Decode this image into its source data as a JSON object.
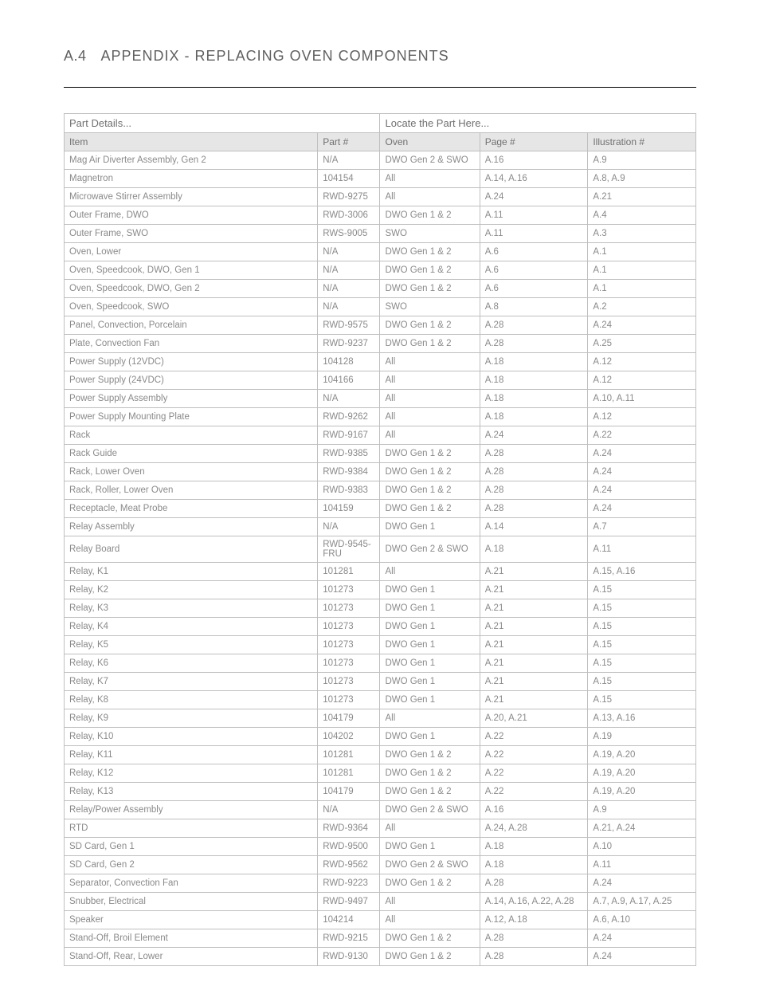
{
  "header": {
    "page_number": "A.4",
    "title": "APPENDIX - REPLACING OVEN COMPONENTS"
  },
  "table": {
    "group_headers": {
      "left": "Part Details...",
      "right": "Locate the Part Here..."
    },
    "columns": [
      "Item",
      "Part #",
      "Oven",
      "Page #",
      "Illustration #"
    ],
    "rows": [
      [
        "Mag Air Diverter Assembly, Gen 2",
        "N/A",
        "DWO Gen 2 & SWO",
        "A.16",
        "A.9"
      ],
      [
        "Magnetron",
        "104154",
        "All",
        "A.14, A.16",
        "A.8, A.9"
      ],
      [
        "Microwave Stirrer Assembly",
        "RWD-9275",
        "All",
        "A.24",
        "A.21"
      ],
      [
        "Outer Frame, DWO",
        "RWD-3006",
        "DWO Gen 1 & 2",
        "A.11",
        "A.4"
      ],
      [
        "Outer Frame, SWO",
        "RWS-9005",
        "SWO",
        "A.11",
        "A.3"
      ],
      [
        "Oven, Lower",
        "N/A",
        "DWO Gen 1 & 2",
        "A.6",
        "A.1"
      ],
      [
        "Oven, Speedcook, DWO, Gen 1",
        "N/A",
        "DWO Gen 1 & 2",
        "A.6",
        "A.1"
      ],
      [
        "Oven, Speedcook, DWO, Gen 2",
        "N/A",
        "DWO Gen 1 & 2",
        "A.6",
        "A.1"
      ],
      [
        "Oven, Speedcook, SWO",
        "N/A",
        "SWO",
        "A.8",
        "A.2"
      ],
      [
        "Panel, Convection, Porcelain",
        "RWD-9575",
        "DWO Gen 1 & 2",
        "A.28",
        "A.24"
      ],
      [
        "Plate, Convection Fan",
        "RWD-9237",
        "DWO Gen 1 & 2",
        "A.28",
        "A.25"
      ],
      [
        "Power Supply (12VDC)",
        "104128",
        "All",
        "A.18",
        "A.12"
      ],
      [
        "Power Supply (24VDC)",
        "104166",
        "All",
        "A.18",
        "A.12"
      ],
      [
        "Power Supply Assembly",
        "N/A",
        "All",
        "A.18",
        "A.10, A.11"
      ],
      [
        "Power Supply Mounting Plate",
        "RWD-9262",
        "All",
        "A.18",
        "A.12"
      ],
      [
        "Rack",
        "RWD-9167",
        "All",
        "A.24",
        "A.22"
      ],
      [
        "Rack Guide",
        "RWD-9385",
        "DWO Gen 1 & 2",
        "A.28",
        "A.24"
      ],
      [
        "Rack, Lower Oven",
        "RWD-9384",
        "DWO Gen 1 & 2",
        "A.28",
        "A.24"
      ],
      [
        "Rack, Roller, Lower Oven",
        "RWD-9383",
        "DWO Gen 1 & 2",
        "A.28",
        "A.24"
      ],
      [
        "Receptacle, Meat Probe",
        "104159",
        "DWO Gen 1 & 2",
        "A.28",
        "A.24"
      ],
      [
        "Relay Assembly",
        "N/A",
        "DWO Gen 1",
        "A.14",
        "A.7"
      ],
      [
        "Relay Board",
        "RWD-9545-FRU",
        "DWO Gen 2 & SWO",
        "A.18",
        "A.11"
      ],
      [
        "Relay, K1",
        "101281",
        "All",
        "A.21",
        "A.15, A.16"
      ],
      [
        "Relay, K2",
        "101273",
        "DWO Gen 1",
        "A.21",
        "A.15"
      ],
      [
        "Relay, K3",
        "101273",
        "DWO Gen 1",
        "A.21",
        "A.15"
      ],
      [
        "Relay, K4",
        "101273",
        "DWO Gen 1",
        "A.21",
        "A.15"
      ],
      [
        "Relay, K5",
        "101273",
        "DWO Gen 1",
        "A.21",
        "A.15"
      ],
      [
        "Relay, K6",
        "101273",
        "DWO Gen 1",
        "A.21",
        "A.15"
      ],
      [
        "Relay, K7",
        "101273",
        "DWO Gen 1",
        "A.21",
        "A.15"
      ],
      [
        "Relay, K8",
        "101273",
        "DWO Gen 1",
        "A.21",
        "A.15"
      ],
      [
        "Relay, K9",
        "104179",
        "All",
        "A.20, A.21",
        "A.13, A.16"
      ],
      [
        "Relay, K10",
        "104202",
        "DWO Gen 1",
        "A.22",
        "A.19"
      ],
      [
        "Relay, K11",
        "101281",
        "DWO Gen 1 & 2",
        "A.22",
        "A.19, A.20"
      ],
      [
        "Relay, K12",
        "101281",
        "DWO Gen 1 & 2",
        "A.22",
        "A.19, A.20"
      ],
      [
        "Relay, K13",
        "104179",
        "DWO Gen 1 & 2",
        "A.22",
        "A.19, A.20"
      ],
      [
        "Relay/Power Assembly",
        "N/A",
        "DWO Gen 2 & SWO",
        "A.16",
        "A.9"
      ],
      [
        "RTD",
        "RWD-9364",
        "All",
        "A.24, A.28",
        "A.21, A.24"
      ],
      [
        "SD Card, Gen 1",
        "RWD-9500",
        "DWO Gen 1",
        "A.18",
        "A.10"
      ],
      [
        "SD Card, Gen 2",
        "RWD-9562",
        "DWO Gen 2 & SWO",
        "A.18",
        "A.11"
      ],
      [
        "Separator, Convection Fan",
        "RWD-9223",
        "DWO Gen 1 & 2",
        "A.28",
        "A.24"
      ],
      [
        "Snubber, Electrical",
        "RWD-9497",
        "All",
        "A.14, A.16, A.22, A.28",
        "A.7, A.9, A.17, A.25"
      ],
      [
        "Speaker",
        "104214",
        "All",
        "A.12, A.18",
        "A.6, A.10"
      ],
      [
        "Stand-Off, Broil Element",
        "RWD-9215",
        "DWO Gen 1 & 2",
        "A.28",
        "A.24"
      ],
      [
        "Stand-Off, Rear, Lower",
        "RWD-9130",
        "DWO Gen 1 & 2",
        "A.28",
        "A.24"
      ]
    ]
  }
}
